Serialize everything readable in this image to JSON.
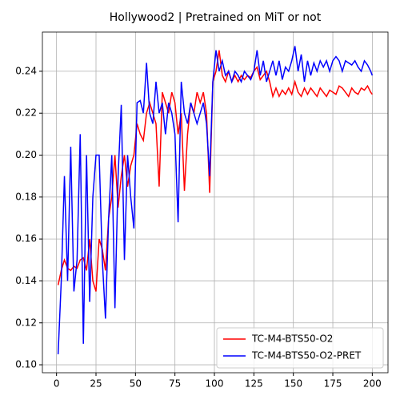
{
  "chart_data": {
    "type": "line",
    "title": "Hollywood2 | Pretrained on MiT or not",
    "x": [
      1,
      3,
      5,
      7,
      9,
      11,
      13,
      15,
      17,
      19,
      21,
      23,
      25,
      27,
      29,
      31,
      33,
      35,
      37,
      39,
      41,
      43,
      45,
      47,
      49,
      51,
      53,
      55,
      57,
      59,
      61,
      63,
      65,
      67,
      69,
      71,
      73,
      75,
      77,
      79,
      81,
      83,
      85,
      87,
      89,
      91,
      93,
      95,
      97,
      99,
      101,
      103,
      105,
      107,
      109,
      111,
      113,
      115,
      117,
      119,
      121,
      123,
      125,
      127,
      129,
      131,
      133,
      135,
      137,
      139,
      141,
      143,
      145,
      147,
      149,
      151,
      153,
      155,
      157,
      159,
      161,
      163,
      165,
      167,
      169,
      171,
      173,
      175,
      177,
      179,
      181,
      183,
      185,
      187,
      189,
      191,
      193,
      195,
      197,
      199,
      200
    ],
    "series": [
      {
        "name": "TC-M4-BTS50-O2",
        "color": "#ff0000",
        "values": [
          0.138,
          0.145,
          0.15,
          0.146,
          0.145,
          0.147,
          0.146,
          0.15,
          0.151,
          0.145,
          0.16,
          0.14,
          0.135,
          0.16,
          0.155,
          0.145,
          0.17,
          0.18,
          0.2,
          0.175,
          0.19,
          0.2,
          0.185,
          0.195,
          0.2,
          0.215,
          0.21,
          0.207,
          0.22,
          0.225,
          0.22,
          0.215,
          0.185,
          0.23,
          0.225,
          0.22,
          0.23,
          0.225,
          0.21,
          0.22,
          0.183,
          0.21,
          0.225,
          0.22,
          0.23,
          0.225,
          0.23,
          0.22,
          0.182,
          0.235,
          0.24,
          0.25,
          0.238,
          0.235,
          0.24,
          0.235,
          0.238,
          0.235,
          0.238,
          0.236,
          0.238,
          0.237,
          0.24,
          0.242,
          0.236,
          0.238,
          0.24,
          0.235,
          0.228,
          0.232,
          0.228,
          0.231,
          0.229,
          0.232,
          0.229,
          0.235,
          0.23,
          0.228,
          0.232,
          0.229,
          0.232,
          0.23,
          0.228,
          0.232,
          0.23,
          0.228,
          0.231,
          0.23,
          0.229,
          0.233,
          0.232,
          0.23,
          0.228,
          0.232,
          0.23,
          0.229,
          0.232,
          0.231,
          0.233,
          0.23,
          0.229
        ]
      },
      {
        "name": "TC-M4-BTS50-O2-PRET",
        "color": "#0000ff",
        "values": [
          0.105,
          0.14,
          0.19,
          0.14,
          0.204,
          0.135,
          0.15,
          0.21,
          0.11,
          0.2,
          0.13,
          0.18,
          0.2,
          0.2,
          0.15,
          0.122,
          0.17,
          0.2,
          0.127,
          0.19,
          0.224,
          0.15,
          0.2,
          0.18,
          0.165,
          0.225,
          0.226,
          0.22,
          0.244,
          0.22,
          0.215,
          0.235,
          0.22,
          0.225,
          0.21,
          0.225,
          0.22,
          0.21,
          0.168,
          0.235,
          0.22,
          0.215,
          0.225,
          0.22,
          0.215,
          0.22,
          0.225,
          0.215,
          0.19,
          0.235,
          0.25,
          0.24,
          0.245,
          0.238,
          0.24,
          0.235,
          0.24,
          0.238,
          0.235,
          0.24,
          0.238,
          0.236,
          0.24,
          0.25,
          0.238,
          0.245,
          0.235,
          0.24,
          0.245,
          0.238,
          0.245,
          0.236,
          0.242,
          0.24,
          0.245,
          0.252,
          0.24,
          0.248,
          0.235,
          0.245,
          0.238,
          0.244,
          0.24,
          0.245,
          0.242,
          0.245,
          0.24,
          0.245,
          0.247,
          0.245,
          0.24,
          0.245,
          0.244,
          0.243,
          0.245,
          0.242,
          0.24,
          0.245,
          0.243,
          0.24,
          0.238
        ]
      }
    ],
    "xlim": [
      -8.95,
      209.95
    ],
    "xticks": [
      0,
      25,
      50,
      75,
      100,
      125,
      150,
      175,
      200
    ],
    "ylim": [
      0.0962,
      0.2587
    ],
    "yticks": [
      {
        "value": 0.1,
        "label": "0.10"
      },
      0.12,
      0.14,
      0.16,
      0.18,
      {
        "value": 0.2,
        "label": "0.20"
      },
      0.22,
      0.24
    ],
    "grid": true,
    "legend": "lower right"
  }
}
